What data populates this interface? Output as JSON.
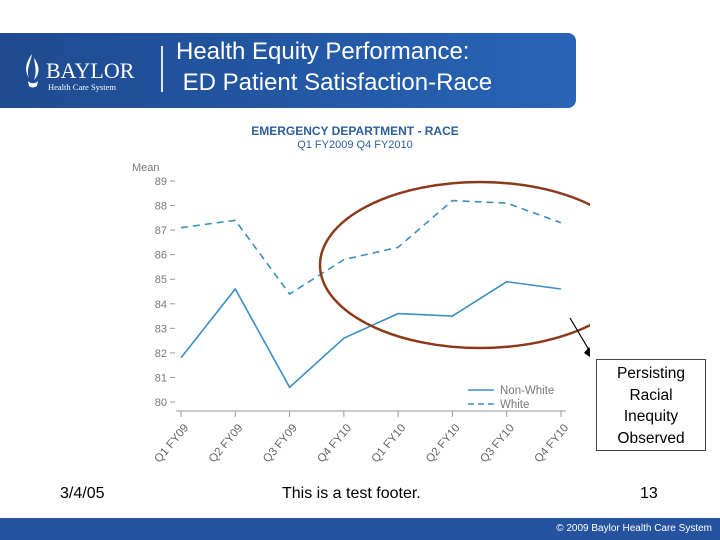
{
  "header": {
    "title_line1": "Health Equity Performance:",
    "title_line2": " ED Patient Satisfaction-Race",
    "logo_name": "BAYLOR",
    "logo_sub": "Health Care System"
  },
  "callout": {
    "lines": [
      "Persisting",
      "Racial",
      "Inequity",
      "Observed"
    ]
  },
  "footer": {
    "date": "3/4/05",
    "text": "This is a test footer.",
    "page": "13",
    "copyright": "© 2009 Baylor Health Care System"
  },
  "colors": {
    "header_blue": "#245aa8",
    "series_blue": "#3b8fc0",
    "title_blue": "#2c5f9e",
    "annotation_ellipse": "#8b3a1a"
  },
  "chart_data": {
    "type": "line",
    "title": "EMERGENCY DEPARTMENT - RACE",
    "subtitle": "Q1 FY2009 Q4 FY2010",
    "ylabel": "Mean",
    "xlabel": "",
    "ylim": [
      80,
      89
    ],
    "yticks": [
      80,
      81,
      82,
      83,
      84,
      85,
      86,
      87,
      88,
      89
    ],
    "categories": [
      "Q1 FY09",
      "Q2 FY09",
      "Q3 FY09",
      "Q4 FY10",
      "Q1 FY10",
      "Q2 FY10",
      "Q3 FY10",
      "Q4 FY10"
    ],
    "series": [
      {
        "name": "Non-White",
        "style": "solid",
        "values": [
          81.8,
          84.6,
          80.6,
          82.6,
          83.6,
          83.5,
          84.9,
          84.6
        ]
      },
      {
        "name": "White",
        "style": "dashed",
        "values": [
          87.1,
          87.4,
          84.4,
          85.8,
          86.3,
          88.2,
          88.1,
          87.3
        ]
      }
    ],
    "legend_position": "bottom-right",
    "grid": false
  }
}
